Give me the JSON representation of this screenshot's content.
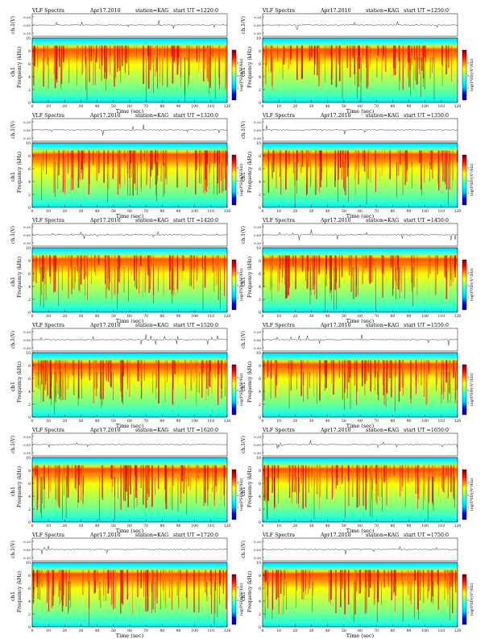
{
  "figure": {
    "title_prefix": "VLF Spectra",
    "date": "Apr17.2010",
    "station": "station=KAG",
    "start_prefix": "start UT =",
    "time_label": "Time (sec)",
    "waveform_label": "ch.1(V)",
    "freq_label": "Frequency (kHz)",
    "channel_label": "ch1",
    "colorbar_label": "log(PSD)(V²/Hz)"
  },
  "chart_data": [
    {
      "type": "heatmap",
      "title": "VLF Spectra  Apr17.2010  station=KAG  start UT =1220:0",
      "start_ut": "1220:0",
      "xlabel": "Time (sec)",
      "ylabel": "Frequency (kHz)",
      "xlim": [
        0,
        120
      ],
      "ylim": [
        0,
        10
      ],
      "xticks": [
        0,
        10,
        20,
        30,
        40,
        50,
        60,
        70,
        80,
        90,
        100,
        110,
        120
      ],
      "yticks": [
        0,
        2,
        4,
        6,
        8,
        10
      ],
      "waveform_ylim": [
        -0.3,
        0.3
      ],
      "waveform_yticks": [
        "0.20",
        "0.00",
        "0.30"
      ],
      "colorbar_ticks": [
        "1",
        "2",
        "3"
      ],
      "colors": [
        "#000080",
        "#0000ff",
        "#00c0ff",
        "#00ffff",
        "#80ff80",
        "#ffff00",
        "#ff8000",
        "#ff0000",
        "#800000"
      ]
    },
    {
      "type": "heatmap",
      "title": "VLF Spectra  Apr17.2010  station=KAG  start UT =1250:0",
      "start_ut": "1250:0",
      "xlabel": "Time (sec)",
      "ylabel": "Frequency (kHz)",
      "xlim": [
        0,
        120
      ],
      "ylim": [
        0,
        10
      ],
      "xticks": [
        0,
        10,
        20,
        30,
        40,
        50,
        60,
        70,
        80,
        90,
        100,
        110,
        120
      ],
      "yticks": [
        0,
        2,
        4,
        6,
        8,
        10
      ],
      "waveform_ylim": [
        -0.3,
        0.3
      ],
      "waveform_yticks": [
        "0.20",
        "0.00",
        "0.30"
      ],
      "colorbar_ticks": [
        "1",
        "2",
        "3"
      ],
      "colors": [
        "#000080",
        "#0000ff",
        "#00c0ff",
        "#00ffff",
        "#80ff80",
        "#ffff00",
        "#ff8000",
        "#ff0000",
        "#800000"
      ]
    },
    {
      "type": "heatmap",
      "title": "VLF Spectra  Apr17.2010  station=KAG  start UT =1320:0",
      "start_ut": "1320:0",
      "xlabel": "Time (sec)",
      "ylabel": "Frequency (kHz)",
      "xlim": [
        0,
        120
      ],
      "ylim": [
        0,
        10
      ],
      "xticks": [
        0,
        10,
        20,
        30,
        40,
        50,
        60,
        70,
        80,
        90,
        100,
        110,
        120
      ],
      "yticks": [
        0,
        2,
        4,
        6,
        8,
        10
      ],
      "waveform_ylim": [
        -0.3,
        0.3
      ],
      "waveform_yticks": [
        "0.20",
        "0.00",
        "0.30"
      ],
      "colorbar_ticks": [
        "1",
        "2",
        "3"
      ],
      "colors": [
        "#000080",
        "#0000ff",
        "#00c0ff",
        "#00ffff",
        "#80ff80",
        "#ffff00",
        "#ff8000",
        "#ff0000",
        "#800000"
      ]
    },
    {
      "type": "heatmap",
      "title": "VLF Spectra  Apr17.2010  station=KAG  start UT =1350:0",
      "start_ut": "1350:0",
      "xlabel": "Time (sec)",
      "ylabel": "Frequency (kHz)",
      "xlim": [
        0,
        120
      ],
      "ylim": [
        0,
        10
      ],
      "xticks": [
        0,
        10,
        20,
        30,
        40,
        50,
        60,
        70,
        80,
        90,
        100,
        110,
        120
      ],
      "yticks": [
        0,
        2,
        4,
        6,
        8,
        10
      ],
      "waveform_ylim": [
        -0.3,
        0.3
      ],
      "waveform_yticks": [
        "0.20",
        "0.00",
        "0.30"
      ],
      "colorbar_ticks": [
        "1",
        "2",
        "3"
      ],
      "colors": [
        "#000080",
        "#0000ff",
        "#00c0ff",
        "#00ffff",
        "#80ff80",
        "#ffff00",
        "#ff8000",
        "#ff0000",
        "#800000"
      ]
    },
    {
      "type": "heatmap",
      "title": "VLF Spectra  Apr17.2010  station=KAG  start UT =1420:0",
      "start_ut": "1420:0",
      "xlabel": "Time (sec)",
      "ylabel": "Frequency (kHz)",
      "xlim": [
        0,
        120
      ],
      "ylim": [
        0,
        10
      ],
      "xticks": [
        0,
        10,
        20,
        30,
        40,
        50,
        60,
        70,
        80,
        90,
        100,
        110,
        120
      ],
      "yticks": [
        0,
        2,
        4,
        6,
        8,
        10
      ],
      "waveform_ylim": [
        -0.3,
        0.3
      ],
      "waveform_yticks": [
        "0.20",
        "0.00",
        "0.30"
      ],
      "colorbar_ticks": [
        "1",
        "2",
        "3"
      ],
      "colors": [
        "#000080",
        "#0000ff",
        "#00c0ff",
        "#00ffff",
        "#80ff80",
        "#ffff00",
        "#ff8000",
        "#ff0000",
        "#800000"
      ]
    },
    {
      "type": "heatmap",
      "title": "VLF Spectra  Apr17.2010  station=KAG  start UT =1450:0",
      "start_ut": "1450:0",
      "xlabel": "Time (sec)",
      "ylabel": "Frequency (kHz)",
      "xlim": [
        0,
        120
      ],
      "ylim": [
        0,
        10
      ],
      "xticks": [
        0,
        10,
        20,
        30,
        40,
        50,
        60,
        70,
        80,
        90,
        100,
        110,
        120
      ],
      "yticks": [
        0,
        2,
        4,
        6,
        8,
        10
      ],
      "waveform_ylim": [
        -0.3,
        0.3
      ],
      "waveform_yticks": [
        "0.20",
        "0.00",
        "0.30"
      ],
      "colorbar_ticks": [
        "1",
        "2",
        "3"
      ],
      "colors": [
        "#000080",
        "#0000ff",
        "#00c0ff",
        "#00ffff",
        "#80ff80",
        "#ffff00",
        "#ff8000",
        "#ff0000",
        "#800000"
      ]
    },
    {
      "type": "heatmap",
      "title": "VLF Spectra  Apr17.2010  station=KAG  start UT =1520:0",
      "start_ut": "1520:0",
      "xlabel": "Time (sec)",
      "ylabel": "Frequency (kHz)",
      "xlim": [
        0,
        120
      ],
      "ylim": [
        0,
        10
      ],
      "xticks": [
        0,
        10,
        20,
        30,
        40,
        50,
        60,
        70,
        80,
        90,
        100,
        110,
        120
      ],
      "yticks": [
        0,
        2,
        4,
        6,
        8,
        10
      ],
      "waveform_ylim": [
        -0.3,
        0.3
      ],
      "waveform_yticks": [
        "0.20",
        "0.00",
        "0.30"
      ],
      "colorbar_ticks": [
        "1",
        "2",
        "3"
      ],
      "colors": [
        "#000080",
        "#0000ff",
        "#00c0ff",
        "#00ffff",
        "#80ff80",
        "#ffff00",
        "#ff8000",
        "#ff0000",
        "#800000"
      ]
    },
    {
      "type": "heatmap",
      "title": "VLF Spectra  Apr17.2010  station=KAG  start UT =1550:0",
      "start_ut": "1550:0",
      "xlabel": "Time (sec)",
      "ylabel": "Frequency (kHz)",
      "xlim": [
        0,
        120
      ],
      "ylim": [
        0,
        10
      ],
      "xticks": [
        0,
        10,
        20,
        30,
        40,
        50,
        60,
        70,
        80,
        90,
        100,
        110,
        120
      ],
      "yticks": [
        0,
        2,
        4,
        6,
        8,
        10
      ],
      "waveform_ylim": [
        -0.3,
        0.3
      ],
      "waveform_yticks": [
        "0.20",
        "0.00",
        "0.30"
      ],
      "colorbar_ticks": [
        "1",
        "2",
        "3"
      ],
      "colors": [
        "#000080",
        "#0000ff",
        "#00c0ff",
        "#00ffff",
        "#80ff80",
        "#ffff00",
        "#ff8000",
        "#ff0000",
        "#800000"
      ]
    },
    {
      "type": "heatmap",
      "title": "VLF Spectra  Apr17.2010  station=KAG  start UT =1620:0",
      "start_ut": "1620:0",
      "xlabel": "Time (sec)",
      "ylabel": "Frequency (kHz)",
      "xlim": [
        0,
        120
      ],
      "ylim": [
        0,
        10
      ],
      "xticks": [
        0,
        10,
        20,
        30,
        40,
        50,
        60,
        70,
        80,
        90,
        100,
        110,
        120
      ],
      "yticks": [
        0,
        2,
        4,
        6,
        8,
        10
      ],
      "waveform_ylim": [
        -0.3,
        0.3
      ],
      "waveform_yticks": [
        "0.20",
        "0.00",
        "0.30"
      ],
      "colorbar_ticks": [
        "1",
        "2",
        "3"
      ],
      "colors": [
        "#000080",
        "#0000ff",
        "#00c0ff",
        "#00ffff",
        "#80ff80",
        "#ffff00",
        "#ff8000",
        "#ff0000",
        "#800000"
      ]
    },
    {
      "type": "heatmap",
      "title": "VLF Spectra  Apr17.2010  station=KAG  start UT =1650:0",
      "start_ut": "1650:0",
      "xlabel": "Time (sec)",
      "ylabel": "Frequency (kHz)",
      "xlim": [
        0,
        120
      ],
      "ylim": [
        0,
        10
      ],
      "xticks": [
        0,
        10,
        20,
        30,
        40,
        50,
        60,
        70,
        80,
        90,
        100,
        110,
        120
      ],
      "yticks": [
        0,
        2,
        4,
        6,
        8,
        10
      ],
      "waveform_ylim": [
        -0.3,
        0.3
      ],
      "waveform_yticks": [
        "0.20",
        "0.00",
        "0.30"
      ],
      "colorbar_ticks": [
        "1",
        "2",
        "3"
      ],
      "colors": [
        "#000080",
        "#0000ff",
        "#00c0ff",
        "#00ffff",
        "#80ff80",
        "#ffff00",
        "#ff8000",
        "#ff0000",
        "#800000"
      ]
    },
    {
      "type": "heatmap",
      "title": "VLF Spectra  Apr17.2010  station=KAG  start UT =1720:0",
      "start_ut": "1720:0",
      "xlabel": "Time (sec)",
      "ylabel": "Frequency (kHz)",
      "xlim": [
        0,
        120
      ],
      "ylim": [
        0,
        10
      ],
      "xticks": [
        0,
        10,
        20,
        30,
        40,
        50,
        60,
        70,
        80,
        90,
        100,
        110,
        120
      ],
      "yticks": [
        0,
        2,
        4,
        6,
        8,
        10
      ],
      "waveform_ylim": [
        -0.3,
        0.3
      ],
      "waveform_yticks": [
        "0.20",
        "0.00",
        "0.30"
      ],
      "colorbar_ticks": [
        "1",
        "2",
        "3"
      ],
      "colors": [
        "#000080",
        "#0000ff",
        "#00c0ff",
        "#00ffff",
        "#80ff80",
        "#ffff00",
        "#ff8000",
        "#ff0000",
        "#800000"
      ]
    },
    {
      "type": "heatmap",
      "title": "VLF Spectra  Apr17.2010  station=KAG  start UT =1750:0",
      "start_ut": "1750:0",
      "xlabel": "Time (sec)",
      "ylabel": "Frequency (kHz)",
      "xlim": [
        0,
        120
      ],
      "ylim": [
        0,
        10
      ],
      "xticks": [
        0,
        10,
        20,
        30,
        40,
        50,
        60,
        70,
        80,
        90,
        100,
        110,
        120
      ],
      "yticks": [
        0,
        2,
        4,
        6,
        8,
        10
      ],
      "waveform_ylim": [
        -0.3,
        0.3
      ],
      "waveform_yticks": [
        "0.20",
        "0.00",
        "0.30"
      ],
      "colorbar_ticks": [
        "1",
        "2",
        "3"
      ],
      "colors": [
        "#000080",
        "#0000ff",
        "#00c0ff",
        "#00ffff",
        "#80ff80",
        "#ffff00",
        "#ff8000",
        "#ff0000",
        "#800000"
      ]
    }
  ]
}
